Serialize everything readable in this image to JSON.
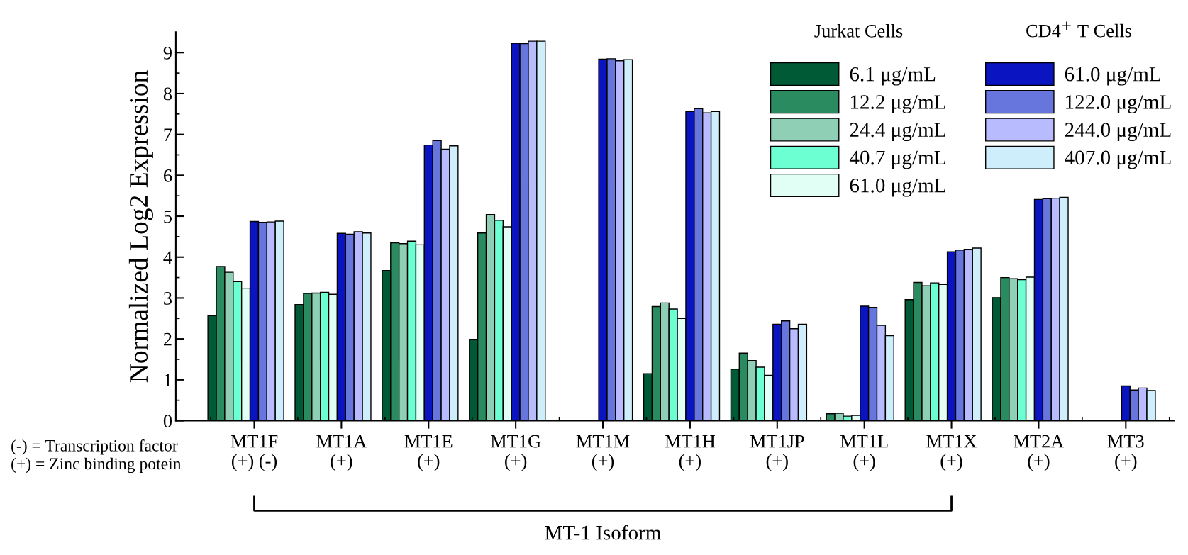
{
  "chart_data": {
    "type": "bar",
    "ylabel": "Normalized Log2 Expression",
    "legend_title": [
      "Jurkat Cells",
      "CD4$^{+}$ T Cells"
    ],
    "categories": [
      "MT1F\n(+) (-)",
      "MT1A\n(+)",
      "MT1E\n(+)",
      "MT1G\n(+)",
      "MT1M\n(+)",
      "MT1H\n(+)",
      "MT1JP\n(+)",
      "MT1L\n(+)",
      "MT1X\n(+)",
      "MT2A\n(+)",
      "MT3\n(+)"
    ],
    "series": [
      {
        "name": "6.1 μg/mL",
        "color": "#005a35",
        "values": [
          2.57,
          2.84,
          3.67,
          1.99,
          null,
          1.15,
          1.26,
          null,
          2.96,
          3.01,
          null
        ]
      },
      {
        "name": "12.2 μg/mL",
        "color": "#2a8a60",
        "values": [
          3.77,
          3.11,
          4.35,
          4.59,
          null,
          2.79,
          1.65,
          0.17,
          3.38,
          3.5,
          null
        ]
      },
      {
        "name": "24.4 μg/mL",
        "color": "#8ecfb5",
        "values": [
          3.63,
          3.12,
          4.33,
          5.04,
          null,
          2.88,
          1.47,
          0.18,
          3.3,
          3.47,
          null
        ]
      },
      {
        "name": "40.7 μg/mL",
        "color": "#6cffd2",
        "values": [
          3.4,
          3.14,
          4.39,
          4.9,
          null,
          2.73,
          1.31,
          0.11,
          3.37,
          3.45,
          null
        ]
      },
      {
        "name": "61.0 μg/mL",
        "color": "#e2fff5",
        "values": [
          3.24,
          3.09,
          4.3,
          4.74,
          null,
          2.5,
          1.11,
          0.13,
          3.33,
          3.51,
          null
        ]
      },
      {
        "name": "61.0 μg/mL",
        "color": "#0a14c0",
        "values": [
          4.87,
          4.58,
          6.74,
          9.23,
          8.84,
          7.56,
          2.36,
          2.8,
          4.13,
          5.41,
          0.85
        ]
      },
      {
        "name": "122.0 μg/mL",
        "color": "#6676dc",
        "values": [
          4.85,
          4.56,
          6.85,
          9.22,
          8.85,
          7.63,
          2.44,
          2.77,
          4.17,
          5.43,
          0.75
        ]
      },
      {
        "name": "244.0 μg/mL",
        "color": "#b8bcff",
        "values": [
          4.86,
          4.62,
          6.64,
          9.28,
          8.8,
          7.53,
          2.25,
          2.33,
          4.19,
          5.44,
          0.8
        ]
      },
      {
        "name": "407.0 μg/mL",
        "color": "#cdeefa",
        "values": [
          4.88,
          4.59,
          6.72,
          9.28,
          8.83,
          7.56,
          2.36,
          2.08,
          4.22,
          5.46,
          0.74
        ]
      }
    ],
    "ylim": [
      0,
      9.5
    ],
    "yticks": [
      0,
      1,
      2,
      3,
      4,
      5,
      6,
      7,
      8,
      9
    ],
    "grid": false,
    "legend": "top right",
    "annotations": [
      "(-) = Transcription factor\n(+) = Zinc binding potein",
      "MT-1 Isoform"
    ]
  }
}
